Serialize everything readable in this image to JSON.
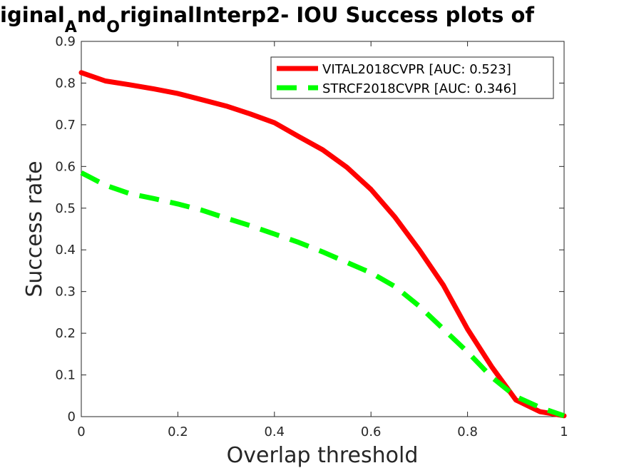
{
  "chart_data": {
    "type": "line",
    "title": {
      "part1": "iginal",
      "sub1": "A",
      "part2": "nd",
      "sub2": "O",
      "part3": "riginalInterp2- IOU Success plots of"
    },
    "xlabel": "Overlap threshold",
    "ylabel": "Success rate",
    "xlim": [
      0,
      1
    ],
    "ylim": [
      0,
      0.9
    ],
    "xticks": [
      0,
      0.2,
      0.4,
      0.6,
      0.8,
      1
    ],
    "xtick_labels": [
      "0",
      "0.2",
      "0.4",
      "0.6",
      "0.8",
      "1"
    ],
    "yticks": [
      0,
      0.1,
      0.2,
      0.3,
      0.4,
      0.5,
      0.6,
      0.7,
      0.8,
      0.9
    ],
    "ytick_labels": [
      "0",
      "0.1",
      "0.2",
      "0.3",
      "0.4",
      "0.5",
      "0.6",
      "0.7",
      "0.8",
      "0.9"
    ],
    "grid": false,
    "legend_position": "top-right",
    "x": [
      0,
      0.05,
      0.1,
      0.15,
      0.2,
      0.25,
      0.3,
      0.35,
      0.4,
      0.45,
      0.5,
      0.55,
      0.6,
      0.65,
      0.7,
      0.75,
      0.8,
      0.85,
      0.9,
      0.95,
      1
    ],
    "series": [
      {
        "name": "VITAL2018CVPR [AUC: 0.523]",
        "color": "#ff0000",
        "style": "solid",
        "values": [
          0.825,
          0.805,
          0.796,
          0.786,
          0.775,
          0.76,
          0.745,
          0.726,
          0.705,
          0.672,
          0.64,
          0.598,
          0.545,
          0.478,
          0.4,
          0.315,
          0.21,
          0.12,
          0.04,
          0.012,
          0.002
        ]
      },
      {
        "name": "STRCF2018CVPR [AUC: 0.346]",
        "color": "#00ff00",
        "style": "dashed",
        "values": [
          0.585,
          0.555,
          0.535,
          0.523,
          0.51,
          0.495,
          0.476,
          0.458,
          0.438,
          0.418,
          0.395,
          0.37,
          0.345,
          0.312,
          0.265,
          0.21,
          0.155,
          0.095,
          0.048,
          0.022,
          0.002
        ]
      }
    ]
  }
}
